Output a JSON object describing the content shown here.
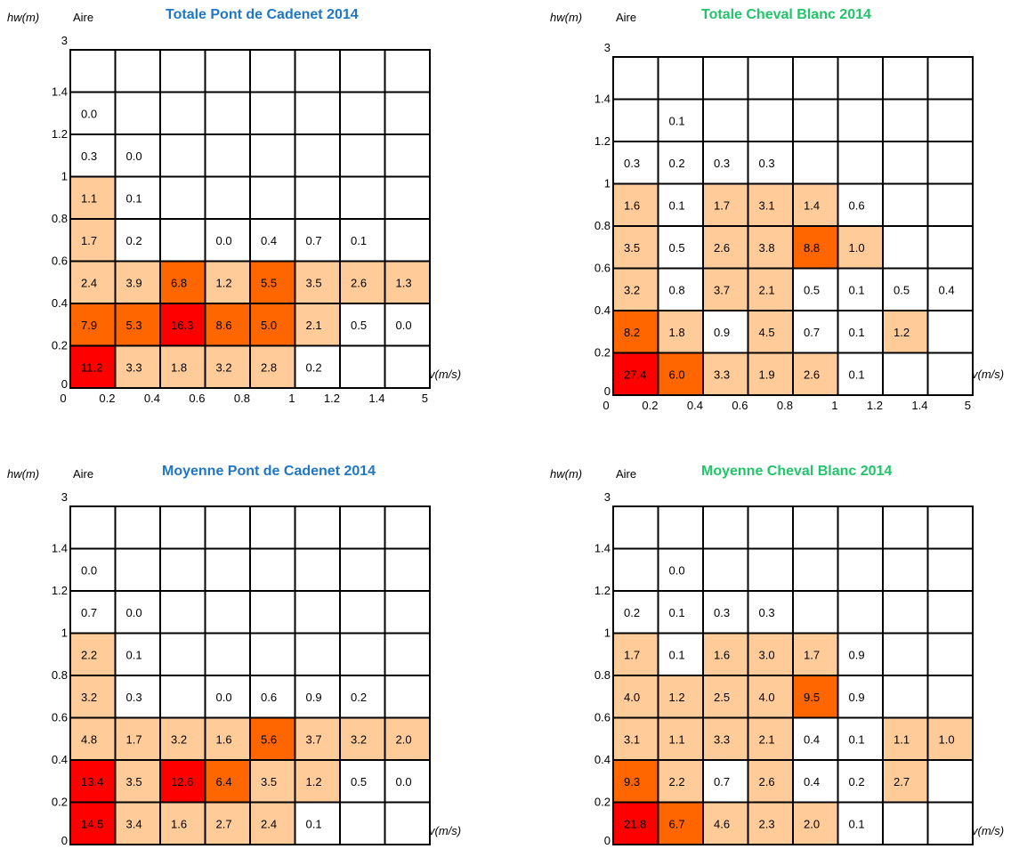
{
  "chart_data": [
    {
      "type": "heatmap",
      "title": "Totale Pont de Cadenet 2014",
      "title_color": "#1f77c4",
      "ylabel": "hw(m)",
      "corner_label": "Aire",
      "xlabel": "v(m/s)",
      "x_ticks": [
        "0",
        "0.2",
        "0.4",
        "0.6",
        "0.8",
        "1",
        "1.2",
        "1.4",
        "5"
      ],
      "y_ticks": [
        "0",
        "0.2",
        "0.4",
        "0.6",
        "0.8",
        "1",
        "1.2",
        "1.4",
        "3"
      ],
      "rows_top_to_bottom": [
        [
          "",
          "",
          "",
          "",
          "",
          "",
          "",
          ""
        ],
        [
          "0.0",
          "",
          "",
          "",
          "",
          "",
          "",
          ""
        ],
        [
          "0.3",
          "0.0",
          "",
          "",
          "",
          "",
          "",
          ""
        ],
        [
          "1.1",
          "0.1",
          "",
          "",
          "",
          "",
          "",
          ""
        ],
        [
          "1.7",
          "0.2",
          "",
          "0.0",
          "0.4",
          "0.7",
          "0.1",
          ""
        ],
        [
          "2.4",
          "3.9",
          "6.8",
          "1.2",
          "5.5",
          "3.5",
          "2.6",
          "1.3"
        ],
        [
          "7.9",
          "5.3",
          "16.3",
          "8.6",
          "5.0",
          "2.1",
          "0.5",
          "0.0"
        ],
        [
          "11.2",
          "3.3",
          "1.8",
          "3.2",
          "2.8",
          "0.2",
          "",
          ""
        ]
      ]
    },
    {
      "type": "heatmap",
      "title": "Totale Cheval Blanc 2014",
      "title_color": "#22c46a",
      "ylabel": "hw(m)",
      "corner_label": "Aire",
      "xlabel": "v(m/s)",
      "x_ticks": [
        "0",
        "0.2",
        "0.4",
        "0.6",
        "0.8",
        "1",
        "1.2",
        "1.4",
        "5"
      ],
      "y_ticks": [
        "0",
        "0.2",
        "0.4",
        "0.6",
        "0.8",
        "1",
        "1.2",
        "1.4",
        "3"
      ],
      "rows_top_to_bottom": [
        [
          "",
          "",
          "",
          "",
          "",
          "",
          "",
          ""
        ],
        [
          "",
          "0.1",
          "",
          "",
          "",
          "",
          "",
          ""
        ],
        [
          "0.3",
          "0.2",
          "0.3",
          "0.3",
          "",
          "",
          "",
          ""
        ],
        [
          "1.6",
          "0.1",
          "1.7",
          "3.1",
          "1.4",
          "0.6",
          "",
          ""
        ],
        [
          "3.5",
          "0.5",
          "2.6",
          "3.8",
          "8.8",
          "1.0",
          "",
          ""
        ],
        [
          "3.2",
          "0.8",
          "3.7",
          "2.1",
          "0.5",
          "0.1",
          "0.5",
          "0.4"
        ],
        [
          "8.2",
          "1.8",
          "0.9",
          "4.5",
          "0.7",
          "0.1",
          "1.2",
          ""
        ],
        [
          "27.4",
          "6.0",
          "3.3",
          "1.9",
          "2.6",
          "0.1",
          "",
          ""
        ]
      ]
    },
    {
      "type": "heatmap",
      "title": "Moyenne Pont de Cadenet 2014",
      "title_color": "#1f77c4",
      "ylabel": "hw(m)",
      "corner_label": "Aire",
      "xlabel": "v(m/s)",
      "x_ticks": [
        "0",
        "0.2",
        "0.4",
        "0.6",
        "0.8",
        "1",
        "1.2",
        "1.4",
        "5"
      ],
      "y_ticks": [
        "0",
        "0.2",
        "0.4",
        "0.6",
        "0.8",
        "1",
        "1.2",
        "1.4",
        "3"
      ],
      "rows_top_to_bottom": [
        [
          "",
          "",
          "",
          "",
          "",
          "",
          "",
          ""
        ],
        [
          "0.0",
          "",
          "",
          "",
          "",
          "",
          "",
          ""
        ],
        [
          "0.7",
          "0.0",
          "",
          "",
          "",
          "",
          "",
          ""
        ],
        [
          "2.2",
          "0.1",
          "",
          "",
          "",
          "",
          "",
          ""
        ],
        [
          "3.2",
          "0.3",
          "",
          "0.0",
          "0.6",
          "0.9",
          "0.2",
          ""
        ],
        [
          "4.8",
          "1.7",
          "3.2",
          "1.6",
          "5.6",
          "3.7",
          "3.2",
          "2.0"
        ],
        [
          "13.4",
          "3.5",
          "12.6",
          "6.4",
          "3.5",
          "1.2",
          "0.5",
          "0.0"
        ],
        [
          "14.5",
          "3.4",
          "1.6",
          "2.7",
          "2.4",
          "0.1",
          "",
          ""
        ]
      ]
    },
    {
      "type": "heatmap",
      "title": "Moyenne Cheval Blanc 2014",
      "title_color": "#22c46a",
      "ylabel": "hw(m)",
      "corner_label": "Aire",
      "xlabel": "v(m/s)",
      "x_ticks": [
        "0",
        "0.2",
        "0.4",
        "0.6",
        "0.8",
        "1",
        "1.2",
        "1.4",
        "5"
      ],
      "y_ticks": [
        "0",
        "0.2",
        "0.4",
        "0.6",
        "0.8",
        "1",
        "1.2",
        "1.4",
        "3"
      ],
      "rows_top_to_bottom": [
        [
          "",
          "",
          "",
          "",
          "",
          "",
          "",
          ""
        ],
        [
          "",
          "0.0",
          "",
          "",
          "",
          "",
          "",
          ""
        ],
        [
          "0.2",
          "0.1",
          "0.3",
          "0.3",
          "",
          "",
          "",
          ""
        ],
        [
          "1.7",
          "0.1",
          "1.6",
          "3.0",
          "1.7",
          "0.9",
          "",
          ""
        ],
        [
          "4.0",
          "1.2",
          "2.5",
          "4.0",
          "9.5",
          "0.9",
          "",
          ""
        ],
        [
          "3.1",
          "1.1",
          "3.3",
          "2.1",
          "0.4",
          "0.1",
          "1.1",
          "1.0"
        ],
        [
          "9.3",
          "2.2",
          "0.7",
          "2.6",
          "0.4",
          "0.2",
          "2.7",
          ""
        ],
        [
          "21.8",
          "6.7",
          "4.6",
          "2.3",
          "2.0",
          "0.1",
          "",
          ""
        ]
      ]
    }
  ],
  "colors": {
    "high": "#ff0000",
    "medium": "#ff6600",
    "low": "#ffcc99",
    "none": "#ffffff",
    "grid": "#000000"
  }
}
